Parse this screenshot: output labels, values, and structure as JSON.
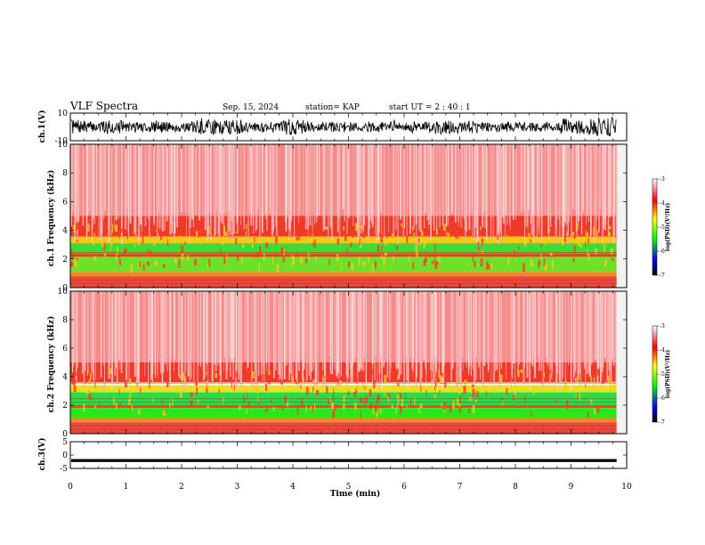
{
  "header": {
    "title": "VLF Spectra",
    "date": "Sep. 15, 2024",
    "station": "station= KAP",
    "start_ut": "start  UT  =   2  : 40 : 1"
  },
  "colorbar": {
    "label": "log(PSD)(V²/Hz)",
    "ticks": [
      "-3",
      "-4",
      "-5",
      "-6",
      "-7"
    ],
    "colors": [
      "#ffffff",
      "#ff0000",
      "#ffff00",
      "#00ff00",
      "#0000ff",
      "#000000"
    ]
  },
  "chart_data": [
    {
      "type": "line",
      "panel": "ch1-waveform",
      "ylabel": "ch.1(V)",
      "ylim": [
        -10,
        10
      ],
      "yticks": [
        "10",
        "-10"
      ],
      "xlim": [
        0,
        10
      ],
      "note": "dense noisy waveform spanning roughly -8 to +8 V"
    },
    {
      "type": "heatmap",
      "panel": "ch1-spectrogram",
      "ylabel": "ch.1 Frequency (kHz)",
      "ylim": [
        0,
        10
      ],
      "yticks": [
        "0",
        "2",
        "4",
        "6",
        "8",
        "10"
      ],
      "xlim": [
        0,
        10
      ],
      "bands": [
        {
          "from_khz": 0.0,
          "to_khz": 0.8,
          "level": "dark-red/orange"
        },
        {
          "from_khz": 0.8,
          "to_khz": 3.6,
          "level": "green/yellow (-5 to -6)"
        },
        {
          "from_khz": 3.6,
          "to_khz": 5.0,
          "level": "red/orange (-4)"
        },
        {
          "from_khz": 5.0,
          "to_khz": 10.0,
          "level": "light red (-3 to -4)"
        }
      ],
      "clim": [
        -7,
        -3
      ]
    },
    {
      "type": "heatmap",
      "panel": "ch2-spectrogram",
      "ylabel": "ch.2 Frequency (kHz)",
      "ylim": [
        0,
        10
      ],
      "yticks": [
        "0",
        "2",
        "4",
        "6",
        "8",
        "10"
      ],
      "xlim": [
        0,
        10
      ],
      "bands": [
        {
          "from_khz": 0.0,
          "to_khz": 0.8,
          "level": "dark-red/orange"
        },
        {
          "from_khz": 0.8,
          "to_khz": 3.4,
          "level": "green/yellow (-5 to -6)"
        },
        {
          "from_khz": 3.4,
          "to_khz": 5.0,
          "level": "red/orange (-4)"
        },
        {
          "from_khz": 5.0,
          "to_khz": 10.0,
          "level": "light red (-3 to -4)"
        }
      ],
      "clim": [
        -7,
        -3
      ]
    },
    {
      "type": "line",
      "panel": "ch3-waveform",
      "ylabel": "ch.3(V)",
      "ylim": [
        -5,
        5
      ],
      "yticks": [
        "5",
        "0",
        "-5"
      ],
      "xlim": [
        0,
        10
      ],
      "xticks": [
        "0",
        "1",
        "2",
        "3",
        "4",
        "5",
        "6",
        "7",
        "8",
        "9",
        "10"
      ],
      "xlabel": "Time (min)",
      "note": "narrow band of values around -2 V, ends near 9.8 min"
    }
  ]
}
